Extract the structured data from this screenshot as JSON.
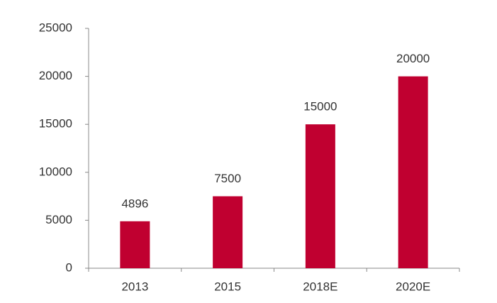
{
  "chart_data": {
    "type": "bar",
    "categories": [
      "2013",
      "2015",
      "2018E",
      "2020E"
    ],
    "values": [
      4896,
      7500,
      15000,
      20000
    ],
    "color": "#c00030",
    "ylim": [
      0,
      25000
    ],
    "yticks": [
      0,
      5000,
      10000,
      15000,
      20000,
      25000
    ],
    "grid": false,
    "data_labels": true
  }
}
